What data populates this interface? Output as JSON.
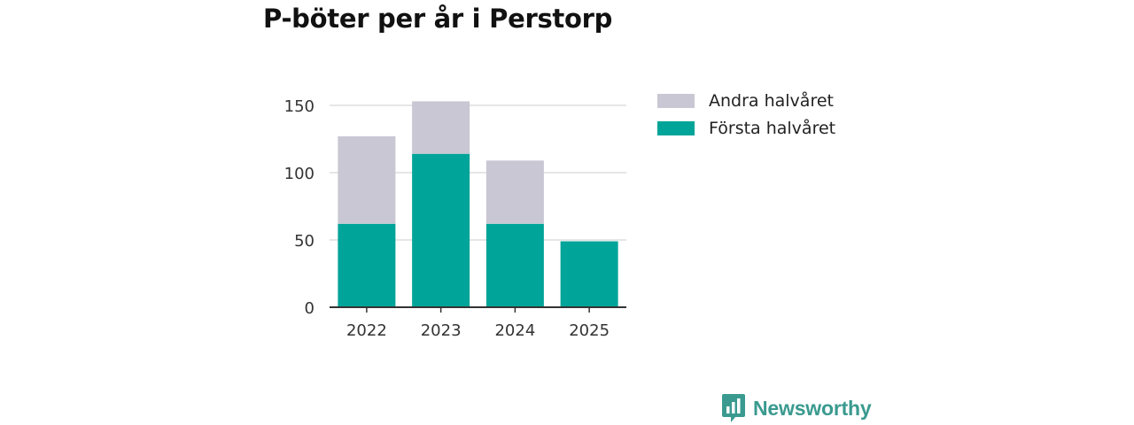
{
  "chart_data": {
    "type": "bar",
    "stacked": true,
    "title": "P-böter per år i Perstorp",
    "categories": [
      "2022",
      "2023",
      "2024",
      "2025"
    ],
    "series": [
      {
        "name": "Första halvåret",
        "values": [
          62,
          114,
          62,
          49
        ],
        "color": "#00a499"
      },
      {
        "name": "Andra halvåret",
        "values": [
          65,
          39,
          47,
          0
        ],
        "color": "#c8c7d3"
      }
    ],
    "legend_order": [
      "Andra halvåret",
      "Första halvåret"
    ],
    "xlabel": "",
    "ylabel": "",
    "ylim": [
      0,
      150
    ],
    "yticks": [
      "0",
      "50",
      "100",
      "150"
    ],
    "grid": true,
    "legend_position": "right"
  },
  "brand": {
    "name": "Newsworthy",
    "color": "#3a9a8f"
  }
}
